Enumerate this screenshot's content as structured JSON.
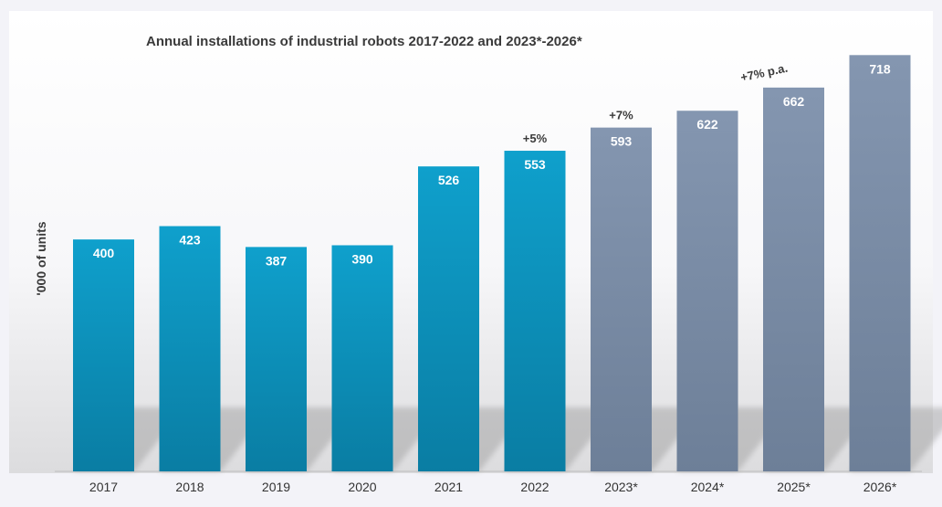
{
  "chart_data": {
    "type": "bar",
    "title": "Annual installations of industrial robots 2017-2022 and 2023*-2026*",
    "ylabel": "'000 of units",
    "xlabel": "",
    "categories": [
      "2017",
      "2018",
      "2019",
      "2020",
      "2021",
      "2022",
      "2023*",
      "2024*",
      "2025*",
      "2026*"
    ],
    "values": [
      400,
      423,
      387,
      390,
      526,
      553,
      593,
      622,
      662,
      718
    ],
    "forecast": [
      false,
      false,
      false,
      false,
      false,
      false,
      true,
      true,
      true,
      true
    ],
    "ylim": [
      0,
      750
    ],
    "grid": false,
    "colors": {
      "actual": "#0fa0cc",
      "actual_dark": "#0a7da3",
      "forecast": "#8496b0",
      "forecast_dark": "#6d7f98"
    },
    "annotations": [
      {
        "text": "+5%",
        "category": "2022"
      },
      {
        "text": "+7%",
        "category": "2023*"
      },
      {
        "text": "+7% p.a.",
        "category": "2025*",
        "rotated": true
      }
    ]
  }
}
